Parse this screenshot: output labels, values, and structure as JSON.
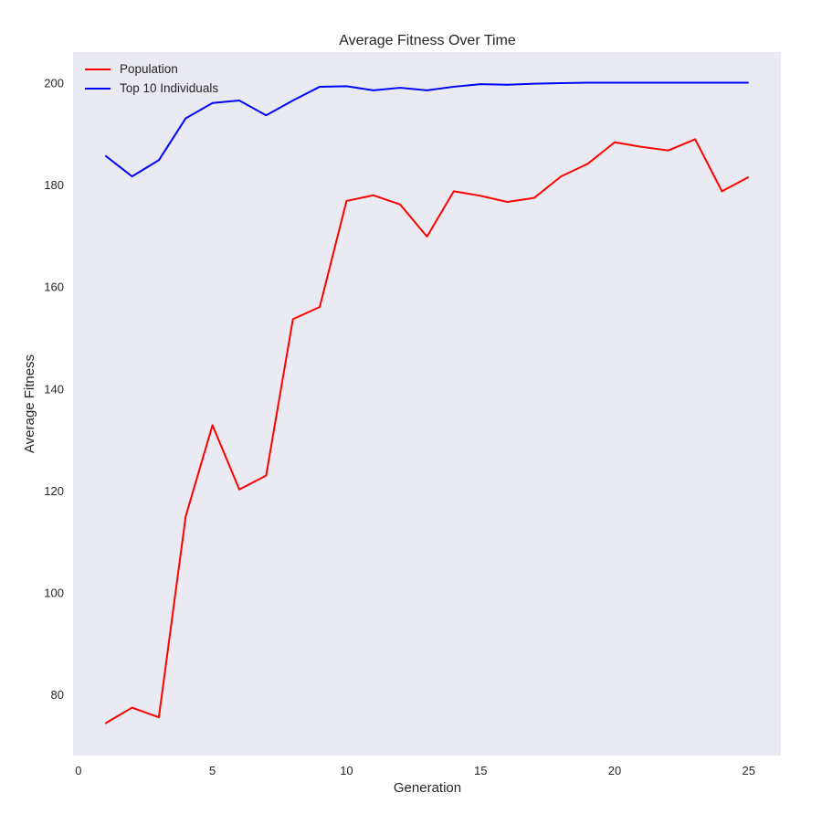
{
  "chart_data": {
    "type": "line",
    "title": "Average Fitness Over Time",
    "xlabel": "Generation",
    "ylabel": "Average Fitness",
    "x": [
      1,
      2,
      3,
      4,
      5,
      6,
      7,
      8,
      9,
      10,
      11,
      12,
      13,
      14,
      15,
      16,
      17,
      18,
      19,
      20,
      21,
      22,
      23,
      24,
      25
    ],
    "xlim": [
      -0.2,
      26.2
    ],
    "ylim": [
      68,
      206
    ],
    "xticks": [
      0,
      5,
      10,
      15,
      20,
      25
    ],
    "yticks": [
      80,
      100,
      120,
      140,
      160,
      180,
      200
    ],
    "grid": false,
    "legend_position": "top-left",
    "background_color": "#eaeaf2",
    "series": [
      {
        "name": "Population",
        "color": "#ff0000",
        "values": [
          74.3,
          77.4,
          75.5,
          114.9,
          132.8,
          120.2,
          122.9,
          153.6,
          156.0,
          176.8,
          177.9,
          176.1,
          169.8,
          178.7,
          177.8,
          176.6,
          177.4,
          181.6,
          184.1,
          188.3,
          187.4,
          186.7,
          188.9,
          178.7,
          181.5
        ]
      },
      {
        "name": "Top 10 Individuals",
        "color": "#0000ff",
        "values": [
          185.7,
          181.6,
          184.8,
          193.0,
          196.0,
          196.5,
          193.6,
          196.5,
          199.2,
          199.3,
          198.5,
          199.0,
          198.5,
          199.2,
          199.7,
          199.6,
          199.8,
          199.9,
          200.0,
          200.0,
          200.0,
          200.0,
          200.0,
          200.0,
          200.0
        ]
      }
    ]
  }
}
